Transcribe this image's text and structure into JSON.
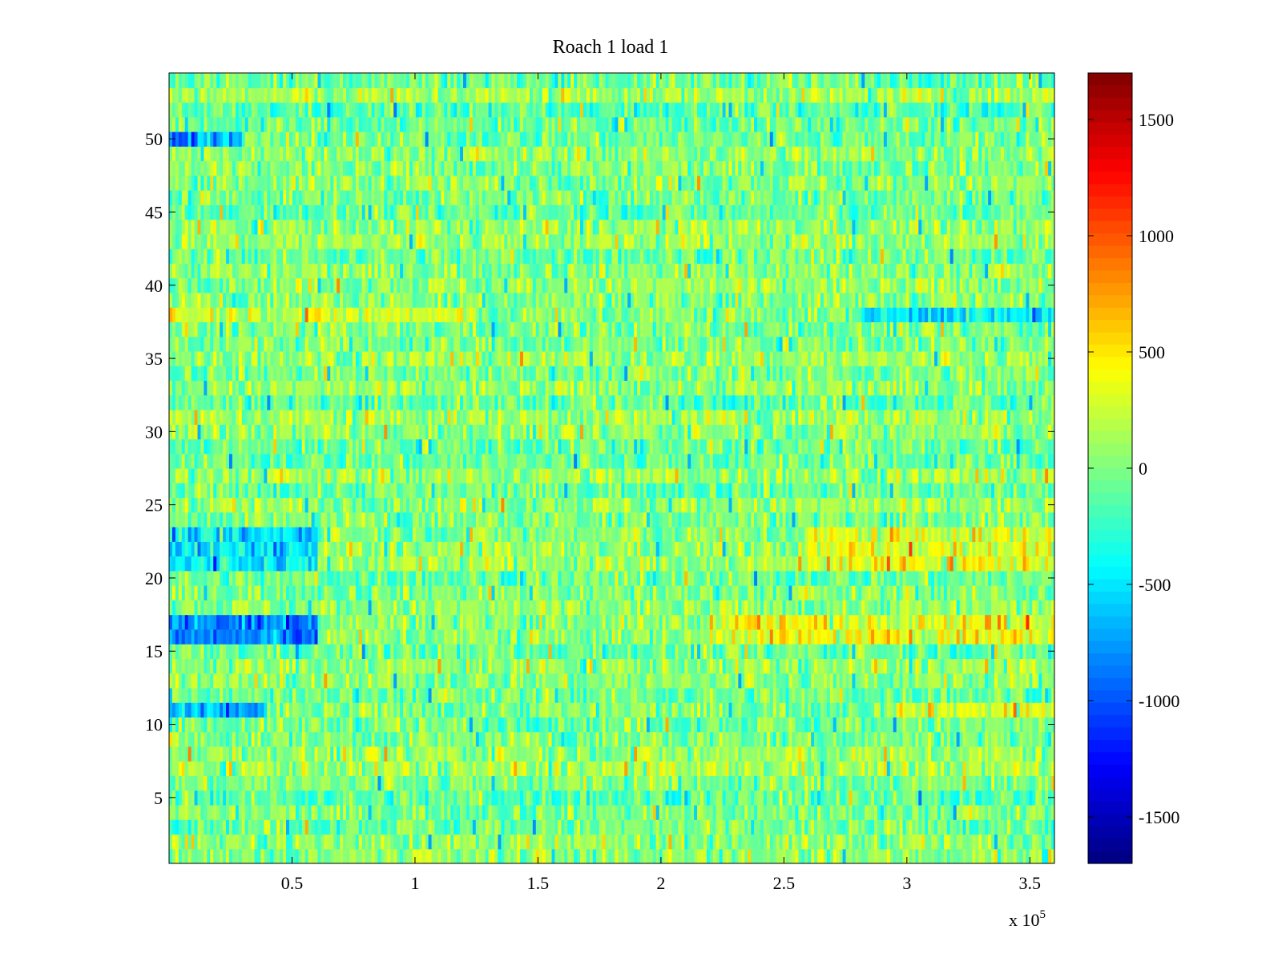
{
  "chart_data": {
    "type": "heatmap",
    "title": "Roach 1 load 1",
    "xlabel": "",
    "ylabel": "",
    "x_range": [
      0,
      360000
    ],
    "y_range": [
      0.5,
      54.5
    ],
    "rows": 54,
    "xticks": [
      {
        "value": 50000,
        "label": "0.5"
      },
      {
        "value": 100000,
        "label": "1"
      },
      {
        "value": 150000,
        "label": "1.5"
      },
      {
        "value": 200000,
        "label": "2"
      },
      {
        "value": 250000,
        "label": "2.5"
      },
      {
        "value": 300000,
        "label": "3"
      },
      {
        "value": 350000,
        "label": "3.5"
      }
    ],
    "x_exponent": {
      "base": "x 10",
      "power": "5"
    },
    "yticks": [
      {
        "value": 5,
        "label": "5"
      },
      {
        "value": 10,
        "label": "10"
      },
      {
        "value": 15,
        "label": "15"
      },
      {
        "value": 20,
        "label": "20"
      },
      {
        "value": 25,
        "label": "25"
      },
      {
        "value": 30,
        "label": "30"
      },
      {
        "value": 35,
        "label": "35"
      },
      {
        "value": 40,
        "label": "40"
      },
      {
        "value": 45,
        "label": "45"
      },
      {
        "value": 50,
        "label": "50"
      }
    ],
    "colorbar": {
      "colormap": "jet",
      "range": [
        -1700,
        1700
      ],
      "ticks": [
        {
          "value": 1500,
          "label": "1500"
        },
        {
          "value": 1000,
          "label": "1000"
        },
        {
          "value": 500,
          "label": "500"
        },
        {
          "value": 0,
          "label": "0"
        },
        {
          "value": -500,
          "label": "-500"
        },
        {
          "value": -1000,
          "label": "-1000"
        },
        {
          "value": -1500,
          "label": "-1500"
        }
      ]
    },
    "row_tendencies": [
      {
        "rows": [
          16,
          17
        ],
        "x_range": [
          0,
          60000
        ],
        "approx_value": -1100,
        "note_color": "blue"
      },
      {
        "rows": [
          16,
          17
        ],
        "x_range": [
          220000,
          360000
        ],
        "approx_value": 450,
        "note_color": "yellow-orange"
      },
      {
        "rows": [
          11
        ],
        "x_range": [
          0,
          40000
        ],
        "approx_value": -900,
        "note_color": "blue"
      },
      {
        "rows": [
          11
        ],
        "x_range": [
          290000,
          360000
        ],
        "approx_value": 400,
        "note_color": "yellow"
      },
      {
        "rows": [
          21,
          22,
          23
        ],
        "x_range": [
          0,
          60000
        ],
        "approx_value": -700,
        "note_color": "blue"
      },
      {
        "rows": [
          21,
          22,
          23
        ],
        "x_range": [
          260000,
          360000
        ],
        "approx_value": 350,
        "note_color": "yellow"
      },
      {
        "rows": [
          50
        ],
        "x_range": [
          0,
          30000
        ],
        "approx_value": -800,
        "note_color": "blue"
      },
      {
        "rows": [
          38
        ],
        "x_range": [
          0,
          120000
        ],
        "approx_value": 350,
        "note_color": "yellow"
      },
      {
        "rows": [
          38
        ],
        "x_range": [
          280000,
          360000
        ],
        "approx_value": -600,
        "note_color": "cyan-blue"
      }
    ],
    "typical_value_range": [
      -400,
      400
    ],
    "grid": false,
    "legend": "colorbar right"
  }
}
